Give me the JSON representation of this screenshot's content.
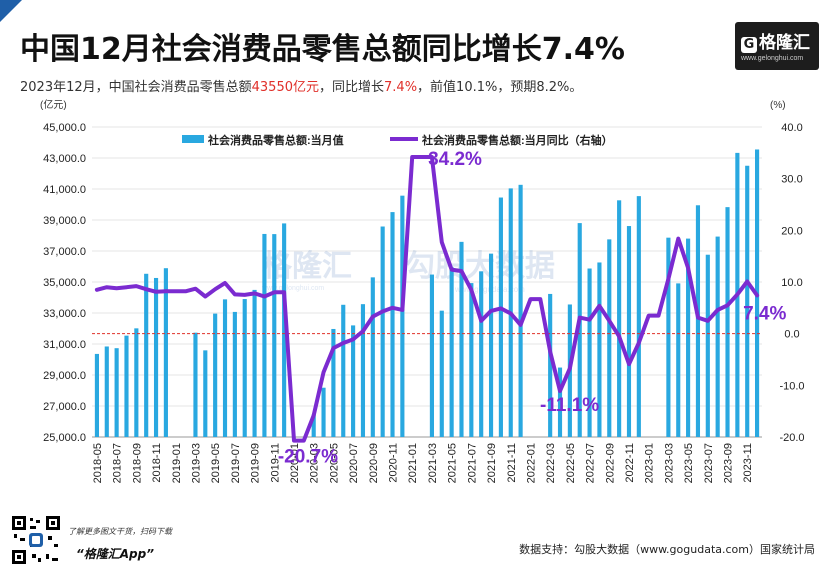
{
  "header": {
    "title": "中国12月社会消费品零售总额同比增长7.4%",
    "subtitle_pre": "2023年12月，中国社会消费品零售总额",
    "subtitle_hl1": "43550亿元",
    "subtitle_mid": "，同比增长",
    "subtitle_hl2": "7.4%",
    "subtitle_post": "，前值10.1%，预期8.2%。"
  },
  "logo": {
    "icon": "G",
    "name": "格隆汇",
    "url": "www.gelonghui.com"
  },
  "watermark": {
    "brand1": "格隆汇",
    "brand2": "勾股大数据",
    "url2": "www.gogudata.com",
    "url1": "www.gelonghui.com"
  },
  "footer": {
    "note": "了解更多图文干货，扫码下载",
    "app": "“格隆汇App”",
    "source": "数据支持：勾股大数据（www.gogudata.com）国家统计局"
  },
  "colors": {
    "bar": "#29a8e0",
    "line": "#7b2bd0",
    "ref": "#e0302a",
    "brand": "#1f5fa8"
  },
  "chart_data": {
    "type": "bar+line",
    "left_unit": "(亿元)",
    "right_unit": "(%)",
    "left_ylim": [
      25000,
      45000
    ],
    "left_ticks": [
      "25,000.0",
      "27,000.0",
      "29,000.0",
      "31,000.0",
      "33,000.0",
      "35,000.0",
      "37,000.0",
      "39,000.0",
      "41,000.0",
      "43,000.0",
      "45,000.0"
    ],
    "right_ylim": [
      -20,
      40
    ],
    "right_ticks": [
      "-20.0",
      "-10.0",
      "0.0",
      "10.0",
      "20.0",
      "30.0",
      "40.0"
    ],
    "categories": [
      "2018-05",
      "2018-06",
      "2018-07",
      "2018-08",
      "2018-09",
      "2018-10",
      "2018-11",
      "2018-12",
      "2019-01",
      "2019-02",
      "2019-03",
      "2019-04",
      "2019-05",
      "2019-06",
      "2019-07",
      "2019-08",
      "2019-09",
      "2019-10",
      "2019-11",
      "2019-12",
      "2020-01",
      "2020-02",
      "2020-03",
      "2020-04",
      "2020-05",
      "2020-06",
      "2020-07",
      "2020-08",
      "2020-09",
      "2020-10",
      "2020-11",
      "2020-12",
      "2021-01",
      "2021-02",
      "2021-03",
      "2021-04",
      "2021-05",
      "2021-06",
      "2021-07",
      "2021-08",
      "2021-09",
      "2021-10",
      "2021-11",
      "2021-12",
      "2022-01",
      "2022-02",
      "2022-03",
      "2022-04",
      "2022-05",
      "2022-06",
      "2022-07",
      "2022-08",
      "2022-09",
      "2022-10",
      "2022-11",
      "2022-12",
      "2023-01",
      "2023-02",
      "2023-03",
      "2023-04",
      "2023-05",
      "2023-06",
      "2023-07",
      "2023-08",
      "2023-09",
      "2023-10",
      "2023-11",
      "2023-12"
    ],
    "x_tick_labels": [
      "2018-05",
      "2018-07",
      "2018-09",
      "2018-11",
      "2019-01",
      "2019-03",
      "2019-05",
      "2019-07",
      "2019-09",
      "2019-11",
      "2020-01",
      "2020-03",
      "2020-05",
      "2020-07",
      "2020-09",
      "2020-11",
      "2021-01",
      "2021-03",
      "2021-05",
      "2021-07",
      "2021-09",
      "2021-11",
      "2022-01",
      "2022-03",
      "2022-05",
      "2022-07",
      "2022-09",
      "2022-11",
      "2023-01",
      "2023-03",
      "2023-05",
      "2023-07",
      "2023-09",
      "2023-11"
    ],
    "series": [
      {
        "name": "社会消费品零售总额:当月值",
        "axis": "left",
        "type": "bar",
        "values": [
          30360,
          30840,
          30730,
          31540,
          32010,
          35530,
          35260,
          35890,
          null,
          null,
          31730,
          30590,
          32960,
          33880,
          33070,
          33900,
          34490,
          38100,
          38090,
          38780,
          null,
          null,
          26450,
          28180,
          31970,
          33530,
          32200,
          33570,
          35300,
          38580,
          39510,
          40570,
          null,
          null,
          35480,
          33150,
          35950,
          37590,
          34930,
          35690,
          36830,
          40450,
          41040,
          41270,
          null,
          null,
          34230,
          29480,
          33550,
          38800,
          35870,
          36260,
          37750,
          40270,
          38610,
          40540,
          null,
          null,
          37860,
          34910,
          37800,
          39950,
          36760,
          37930,
          39830,
          43330,
          42500,
          43550
        ]
      },
      {
        "name": "社会消费品零售总额:当月同比（右轴）",
        "axis": "right",
        "type": "line",
        "values": [
          8.5,
          9.0,
          8.8,
          9.0,
          9.2,
          8.6,
          8.1,
          8.2,
          8.2,
          8.2,
          8.7,
          7.2,
          8.6,
          9.8,
          7.6,
          7.5,
          7.8,
          7.2,
          8.0,
          8.0,
          -20.7,
          -20.7,
          -15.8,
          -7.5,
          -2.8,
          -1.8,
          -1.1,
          0.5,
          3.3,
          4.3,
          5.0,
          4.6,
          34.2,
          34.2,
          34.2,
          17.7,
          12.4,
          12.1,
          8.5,
          2.5,
          4.4,
          4.9,
          3.9,
          1.7,
          6.7,
          6.7,
          -3.5,
          -11.1,
          -6.7,
          3.1,
          2.7,
          5.4,
          2.5,
          -0.5,
          -5.9,
          -1.8,
          3.5,
          3.5,
          10.6,
          18.4,
          12.7,
          3.1,
          2.5,
          4.6,
          5.5,
          7.6,
          10.1,
          7.4
        ]
      }
    ],
    "annotations": [
      {
        "text": "34.2%",
        "category": "2021-02",
        "value": 34.2
      },
      {
        "text": "-20.7%",
        "category": "2020-02",
        "value": -20.7
      },
      {
        "text": "-11.1%",
        "category": "2022-04",
        "value": -11.1
      },
      {
        "text": "7.4%",
        "category": "2023-12",
        "value": 7.4
      }
    ],
    "reference_line": {
      "axis": "right",
      "value": 0
    }
  }
}
